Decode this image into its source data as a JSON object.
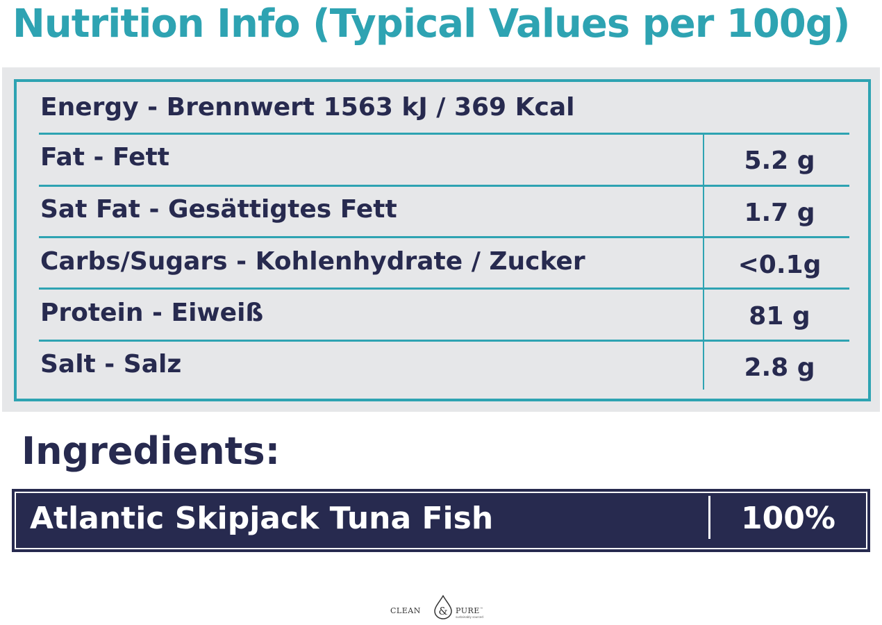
{
  "title": "Nutrition Info (Typical Values per 100g)",
  "energy": "Energy - Brennwert 1563 kJ / 369 Kcal",
  "nutrients": [
    {
      "label": "Fat - Fett",
      "value": "5.2 g"
    },
    {
      "label": "Sat Fat - Gesättigtes Fett",
      "value": "1.7 g"
    },
    {
      "label": "Carbs/Sugars - Kohlenhydrate / Zucker",
      "value": "<0.1g"
    },
    {
      "label": "Protein - Eiweiß",
      "value": "81 g"
    },
    {
      "label": "Salt - Salz",
      "value": "2.8 g"
    }
  ],
  "ingredients": {
    "title": "Ingredients:",
    "name": "Atlantic Skipjack Tuna Fish",
    "percent": "100%"
  },
  "logo": {
    "left": "CLEAN",
    "right": "PURE",
    "tm": "™",
    "tagline": "sustainably sourced"
  },
  "colors": {
    "teal": "#2ea3b2",
    "navy": "#272a4f",
    "panel": "#e6e7e9"
  }
}
